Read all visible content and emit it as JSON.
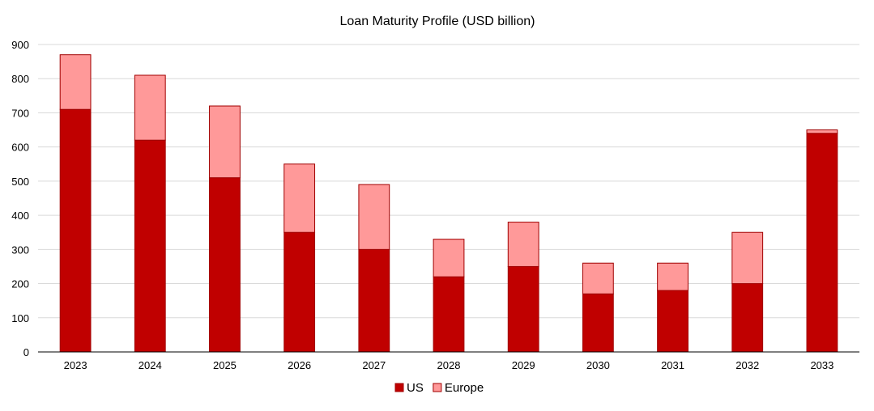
{
  "chart_data": {
    "type": "bar",
    "stacked": true,
    "title": "Loan Maturity Profile (USD billion)",
    "xlabel": "",
    "ylabel": "",
    "categories": [
      "2023",
      "2024",
      "2025",
      "2026",
      "2027",
      "2028",
      "2029",
      "2030",
      "2031",
      "2032",
      "2033"
    ],
    "series": [
      {
        "name": "US",
        "color": "#c00000",
        "values": [
          710,
          620,
          510,
          350,
          300,
          220,
          250,
          170,
          180,
          200,
          640
        ]
      },
      {
        "name": "Europe",
        "color": "#ff9999",
        "values": [
          160,
          190,
          210,
          200,
          190,
          110,
          130,
          90,
          80,
          150,
          10
        ]
      }
    ],
    "ylim": [
      0,
      900
    ],
    "yticks": [
      0,
      100,
      200,
      300,
      400,
      500,
      600,
      700,
      800,
      900
    ],
    "grid": true,
    "legend_position": "bottom"
  }
}
